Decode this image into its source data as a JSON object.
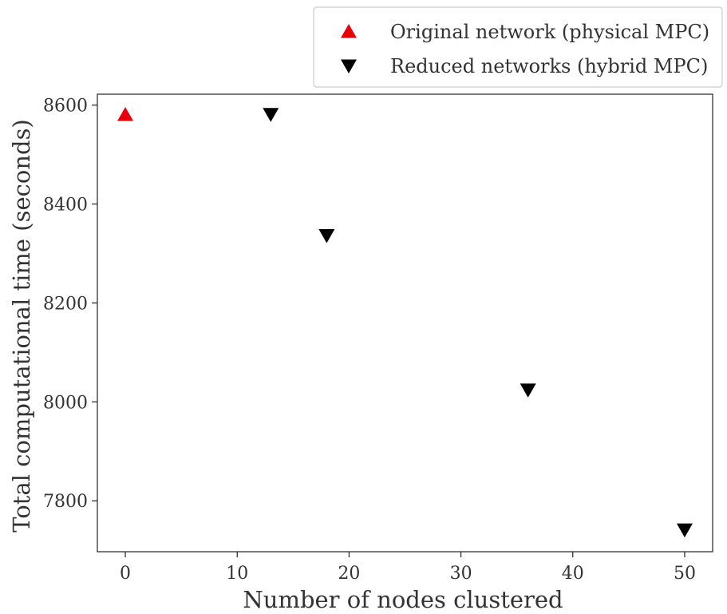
{
  "chart_data": {
    "type": "scatter",
    "title": "",
    "xlabel": "Number of nodes clustered",
    "ylabel": "Total computational time (seconds)",
    "xlim": [
      -2.5,
      52.5
    ],
    "ylim": [
      7697,
      8622
    ],
    "xticks": [
      0,
      10,
      20,
      30,
      40,
      50
    ],
    "yticks": [
      7800,
      8000,
      8200,
      8400,
      8600
    ],
    "grid": false,
    "legend_position": "above-top-right",
    "series": [
      {
        "name": "Original network (physical MPC)",
        "marker": "triangle-up",
        "color": "#e8000b",
        "points": [
          {
            "x": 0,
            "y": 8580
          }
        ]
      },
      {
        "name": "Reduced networks (hybrid MPC)",
        "marker": "triangle-down",
        "color": "#000000",
        "points": [
          {
            "x": 13,
            "y": 8582
          },
          {
            "x": 18,
            "y": 8337
          },
          {
            "x": 36,
            "y": 8025
          },
          {
            "x": 50,
            "y": 7742
          }
        ]
      }
    ]
  }
}
